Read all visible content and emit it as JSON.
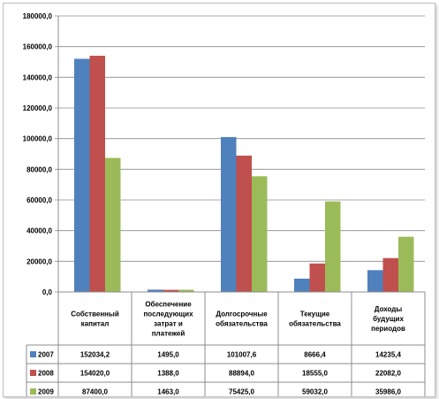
{
  "chart_data": {
    "type": "bar",
    "categories": [
      [
        "Собственный",
        "капитал"
      ],
      [
        "Обеспечение",
        "последующих",
        "затрат и",
        "платежей"
      ],
      [
        "Долгосрочные",
        "обязательства"
      ],
      [
        "Текущие",
        "обязательства"
      ],
      [
        "Доходы",
        "будущих",
        "периодов"
      ]
    ],
    "series": [
      {
        "name": "2007",
        "color": "#4f81bd",
        "values": [
          152034.2,
          1495.0,
          101007.6,
          8666.4,
          14235.4
        ],
        "labels": [
          "152034,2",
          "1495,0",
          "101007,6",
          "8666,4",
          "14235,4"
        ]
      },
      {
        "name": "2008",
        "color": "#c0504d",
        "values": [
          154020.0,
          1388.0,
          88894.0,
          18555.0,
          22082.0
        ],
        "labels": [
          "154020,0",
          "1388,0",
          "88894,0",
          "18555,0",
          "22082,0"
        ]
      },
      {
        "name": "2009",
        "color": "#9bbb59",
        "values": [
          87400.0,
          1463.0,
          75425.0,
          59032.0,
          35986.0
        ],
        "labels": [
          "87400,0",
          "1463,0",
          "75425,0",
          "59032,0",
          "35986,0"
        ]
      }
    ],
    "yticks": [
      "0,0",
      "20000,0",
      "40000,0",
      "60000,0",
      "80000,0",
      "100000,0",
      "120000,0",
      "140000,0",
      "160000,0",
      "180000,0"
    ],
    "ylim": [
      0,
      180000
    ],
    "grid": true,
    "legend": "data-table"
  }
}
